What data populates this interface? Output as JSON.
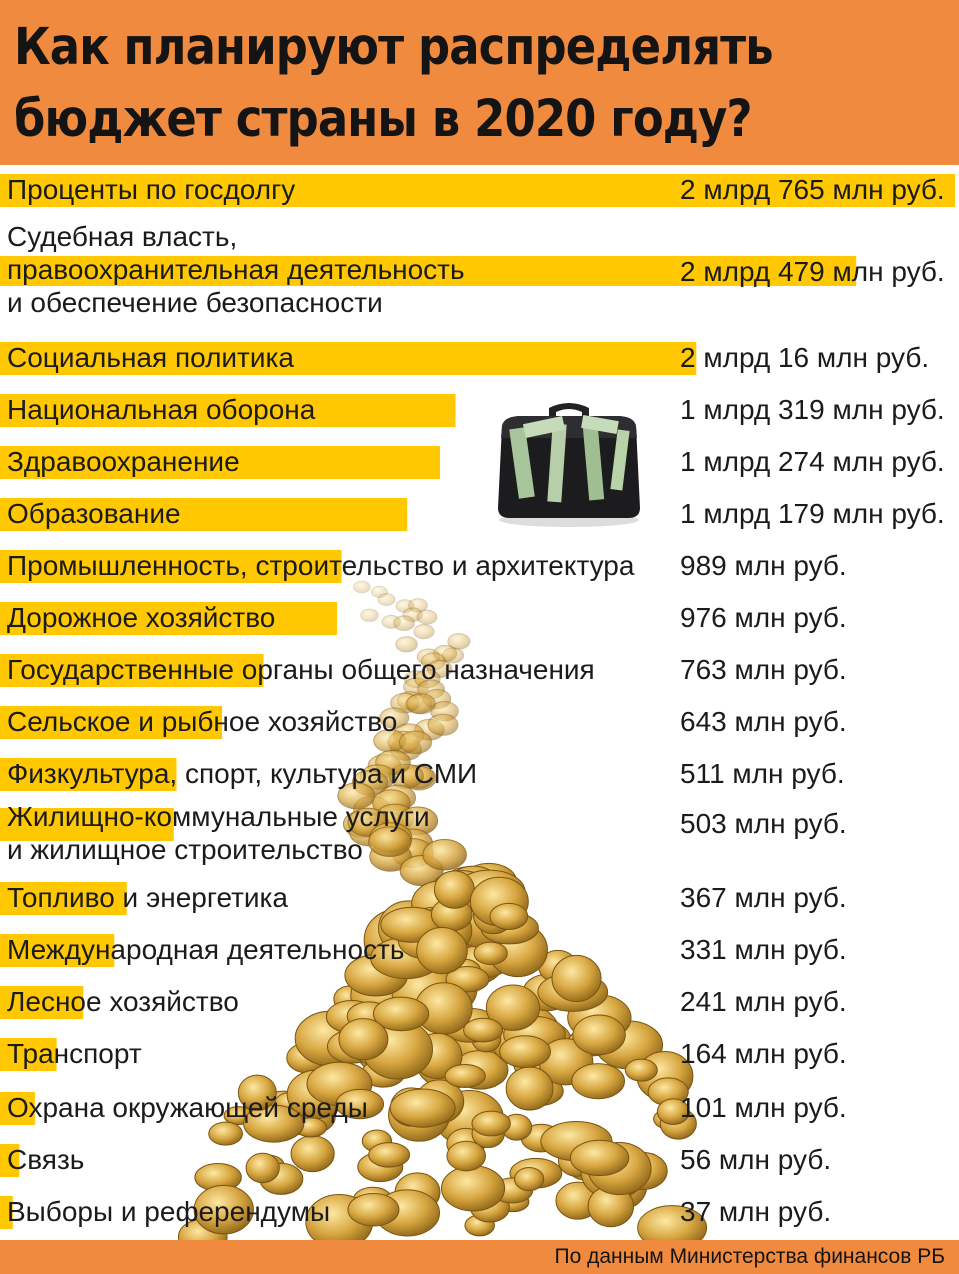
{
  "header": {
    "title_line1": "Как планируют распределять",
    "title_line2": "бюджет страны в 2020 году?",
    "color": "#f08a3e"
  },
  "footer": {
    "source": "По данным Министерства финансов РБ"
  },
  "chart_data": {
    "type": "bar",
    "orientation": "horizontal",
    "unit": "млн руб.",
    "bar_color": "#ffc800",
    "categories": [
      "Проценты по госдолгу",
      "Судебная власть, правоохранительная деятельность и обеспечение безопасности",
      "Социальная политика",
      "Национальная оборона",
      "Здравоохранение",
      "Образование",
      "Промышленность, строительство и архитектура",
      "Дорожное хозяйство",
      "Государственные органы общего назначения",
      "Сельское и рыбное хозяйство",
      "Физкультура, спорт, культура и СМИ",
      "Жилищно-коммунальные услуги и жилищное строительство",
      "Топливо и энергетика",
      "Международная деятельность",
      "Лесное хозяйство",
      "Транспорт",
      "Охрана окружающей среды",
      "Связь",
      "Выборы и референдумы"
    ],
    "values": [
      2765,
      2479,
      2016,
      1319,
      1274,
      1179,
      989,
      976,
      763,
      643,
      511,
      503,
      367,
      331,
      241,
      164,
      101,
      56,
      37
    ],
    "value_labels": [
      "2 млрд 765 млн руб.",
      "2 млрд 479 млн руб.",
      "2 млрд 16 млн руб.",
      "1 млрд 319 млн руб.",
      "1 млрд 274 млн руб.",
      "1 млрд 179 млн руб.",
      "989 млн руб.",
      "976 млн руб.",
      "763 млн руб.",
      "643 млн руб.",
      "511 млн руб.",
      "503 млн руб.",
      "367 млн руб.",
      "331 млн руб.",
      "241 млн руб.",
      "164 млн руб.",
      "101 млн руб.",
      "56 млн руб.",
      "37 млн руб."
    ],
    "label_lines": [
      [
        "Проценты по госдолгу"
      ],
      [
        "Судебная власть,",
        "правоохранительная деятельность",
        "и обеспечение безопасности"
      ],
      [
        "Социальная политика"
      ],
      [
        "Национальная оборона"
      ],
      [
        "Здравоохранение"
      ],
      [
        "Образование"
      ],
      [
        "Промышленность, строительство и архитектура"
      ],
      [
        "Дорожное хозяйство"
      ],
      [
        "Государственные органы общего назначения"
      ],
      [
        "Сельское и рыбное хозяйство"
      ],
      [
        "Физкультура, спорт, культура и СМИ"
      ],
      [
        "Жилищно-коммунальные услуги",
        "и жилищное строительство"
      ],
      [
        "Топливо и энергетика"
      ],
      [
        "Международная деятельность"
      ],
      [
        "Лесное хозяйство"
      ],
      [
        "Транспорт"
      ],
      [
        "Охрана окружающей среды"
      ],
      [
        "Связь"
      ],
      [
        "Выборы и референдумы"
      ]
    ],
    "xlim": [
      0,
      2765
    ],
    "grid": false,
    "legend": "none"
  }
}
